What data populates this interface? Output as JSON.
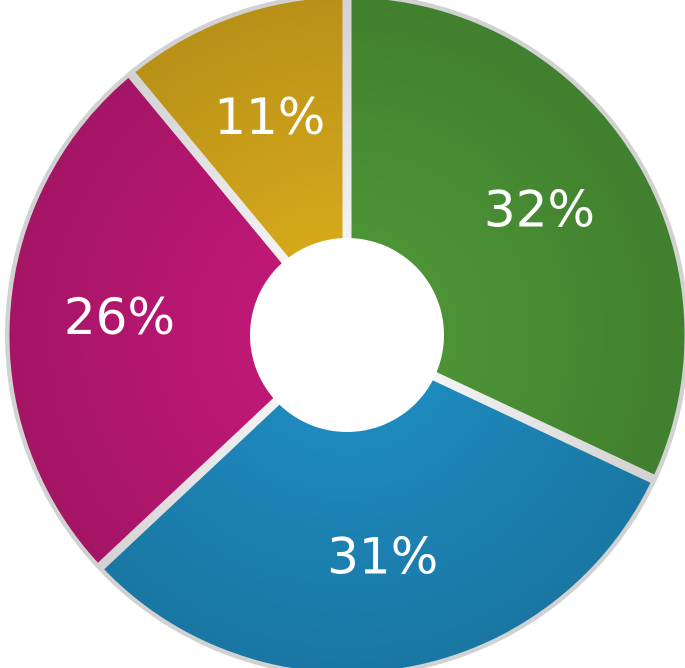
{
  "chart_data": {
    "type": "donut",
    "values": [
      32,
      31,
      26,
      11
    ],
    "value_labels": [
      "32%",
      "31%",
      "26%",
      "11%"
    ],
    "colors": [
      "#4f9b38",
      "#1f90c6",
      "#c8197b",
      "#e0b01c"
    ]
  }
}
